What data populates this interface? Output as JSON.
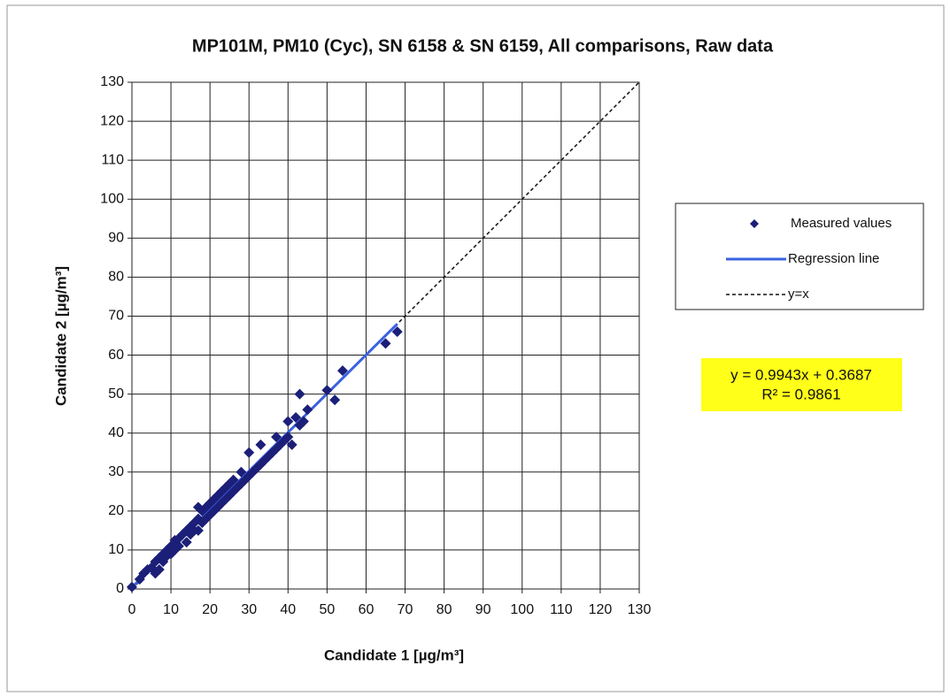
{
  "chart_data": {
    "type": "scatter",
    "title": "MP101M, PM10 (Cyc), SN 6158 & SN 6159, All comparisons, Raw data",
    "x_label": "Candidate 1 [µg/m³]",
    "y_label": "Candidate 2 [µg/m³]",
    "xlim": [
      0,
      130
    ],
    "ylim": [
      0,
      130
    ],
    "xticks": [
      0,
      10,
      20,
      30,
      40,
      50,
      60,
      70,
      80,
      90,
      100,
      110,
      120,
      130
    ],
    "yticks": [
      0,
      10,
      20,
      30,
      40,
      50,
      60,
      70,
      80,
      90,
      100,
      110,
      120,
      130
    ],
    "grid": true,
    "legend": "right",
    "series": [
      {
        "name": "Measured values",
        "mode": "markers",
        "color": "#1c1f78",
        "x": [
          0,
          2,
          3,
          4,
          5,
          6,
          6,
          7,
          7,
          8,
          8,
          9,
          9,
          10,
          10,
          11,
          11,
          12,
          12,
          13,
          14,
          14,
          15,
          15,
          16,
          16,
          17,
          17,
          17,
          18,
          18,
          19,
          19,
          20,
          20,
          21,
          21,
          22,
          22,
          23,
          23,
          24,
          24,
          25,
          25,
          26,
          26,
          27,
          28,
          28,
          29,
          30,
          30,
          31,
          32,
          33,
          33,
          34,
          35,
          36,
          37,
          37,
          38,
          39,
          40,
          40,
          41,
          42,
          43,
          43,
          44,
          45,
          50,
          52,
          54,
          65,
          68
        ],
        "values": [
          0.5,
          2.5,
          4,
          5,
          5.5,
          4,
          7,
          5,
          8,
          7,
          9,
          8.5,
          10,
          9,
          11,
          10,
          12.5,
          11,
          13,
          14,
          12,
          15,
          14,
          16,
          15,
          17,
          15,
          18,
          21,
          17,
          20,
          18,
          21,
          19,
          22,
          20,
          23,
          21,
          24,
          22,
          25,
          23,
          26,
          24,
          27,
          25,
          28,
          26,
          27,
          30,
          28,
          29,
          35,
          30,
          31,
          32,
          37,
          33,
          34,
          35,
          36,
          39,
          37,
          38,
          39,
          43,
          37,
          44,
          42,
          50,
          43,
          46,
          51,
          48.5,
          56,
          63,
          66
        ]
      },
      {
        "name": "Regression line",
        "mode": "line",
        "color": "#3a62e0",
        "x": [
          0,
          68
        ],
        "values": [
          0.4,
          68
        ]
      },
      {
        "name": "y=x",
        "mode": "line",
        "dash": true,
        "color": "#111111",
        "x": [
          0,
          130
        ],
        "values": [
          0,
          130
        ]
      }
    ],
    "annotations": [
      "y = 0.9943x + 0.3687",
      "R² = 0.9861"
    ]
  }
}
